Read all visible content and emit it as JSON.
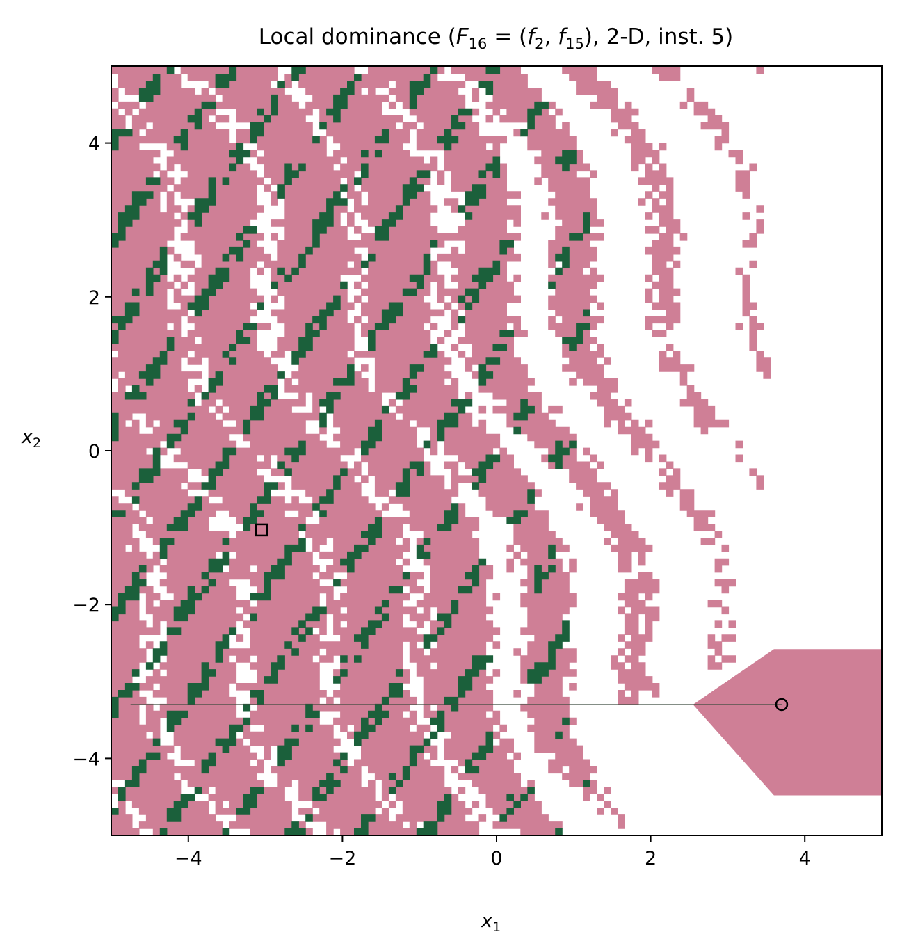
{
  "chart_data": {
    "type": "heatmap",
    "title": {
      "prefix": "Local dominance (",
      "F": "F",
      "F_sub": "16",
      "eq": " = (",
      "f_a": "f",
      "f_a_sub": "2",
      "comma": ", ",
      "f_b": "f",
      "f_b_sub": "15",
      "suffix": "), 2-D, inst. 5)"
    },
    "xlabel": {
      "base": "x",
      "sub": "1"
    },
    "ylabel": {
      "base": "x",
      "sub": "2"
    },
    "xlim": [
      -5,
      5
    ],
    "ylim": [
      -5,
      5
    ],
    "x_ticks": [
      -4,
      -2,
      0,
      2,
      4
    ],
    "y_ticks": [
      -4,
      -2,
      0,
      2,
      4
    ],
    "x_tick_labels": [
      "−4",
      "−2",
      "0",
      "2",
      "4"
    ],
    "y_tick_labels": [
      "−4",
      "−2",
      "0",
      "2",
      "4"
    ],
    "grid": false,
    "legend": "none",
    "colors": {
      "dominated": "#cf7f96",
      "local_optimal": "#1b603b",
      "background": "#ffffff",
      "frame": "#000000"
    },
    "markers": [
      {
        "kind": "square",
        "x": -3.05,
        "y": -1.03
      },
      {
        "kind": "circle",
        "x": 3.7,
        "y": -3.3
      }
    ],
    "path_line": {
      "y": -3.3,
      "x_start": -4.75,
      "x_end": 3.7
    },
    "pink_polygon": [
      [
        2.55,
        -3.3
      ],
      [
        3.6,
        -2.58
      ],
      [
        5,
        -2.58
      ],
      [
        5,
        -4.48
      ],
      [
        3.6,
        -4.48
      ]
    ]
  }
}
